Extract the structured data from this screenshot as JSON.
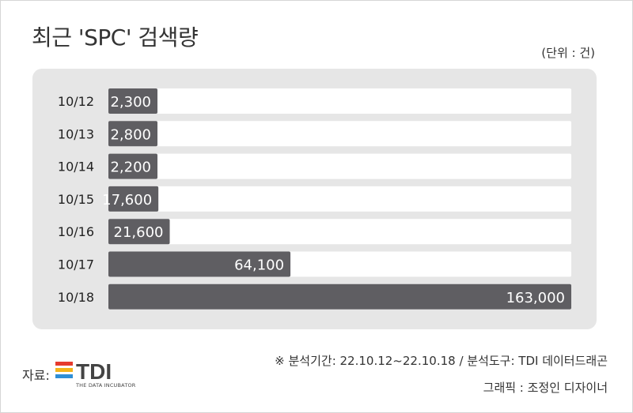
{
  "header": {
    "title": "최근 'SPC' 검색량",
    "unit": "(단위 : 건)"
  },
  "chart_data": {
    "type": "bar",
    "orientation": "horizontal",
    "title": "최근 'SPC' 검색량",
    "unit": "(단위 : 건)",
    "categories": [
      "10/12",
      "10/13",
      "10/14",
      "10/15",
      "10/16",
      "10/17",
      "10/18"
    ],
    "values": [
      2300,
      2800,
      2200,
      17600,
      21600,
      64100,
      163000
    ],
    "value_labels": [
      "2,300",
      "2,800",
      "2,200",
      "17,600",
      "21,600",
      "64,100",
      "163,000"
    ],
    "xlim": [
      0,
      163000
    ],
    "grid": false,
    "colors": {
      "bar": "#5f5e62",
      "track": "#ffffff",
      "panel": "#e6e6e6"
    }
  },
  "footer": {
    "source_label": "자료:",
    "logo_text": "TDI",
    "logo_subtext": "THE DATA INCUBATOR",
    "period": "※ 분석기간: 22.10.12~22.10.18 / 분석도구: TDI 데이터드래곤",
    "credit": "그래픽 : 조정인 디자이너"
  }
}
